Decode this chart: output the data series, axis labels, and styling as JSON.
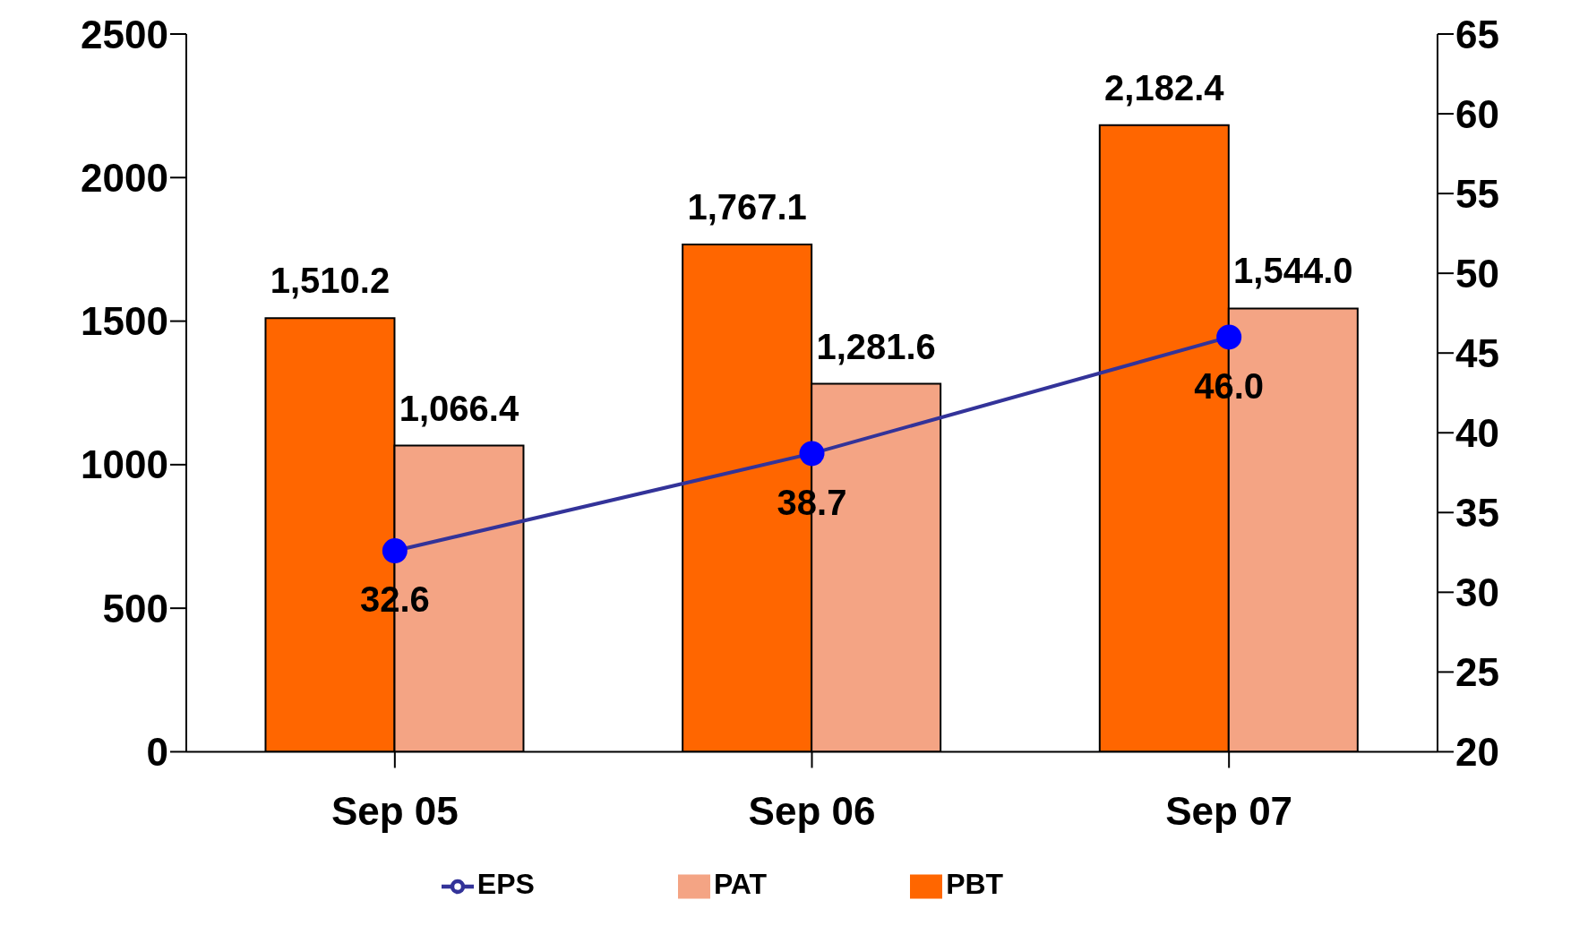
{
  "chart_data": {
    "type": "bar",
    "categories": [
      "Sep 05",
      "Sep 06",
      "Sep 07"
    ],
    "series": [
      {
        "name": "PBT",
        "color": "#ff6600",
        "values": [
          1510.2,
          1767.1,
          2182.4
        ],
        "value_labels": [
          "1,510.2",
          "1,767.1",
          "2,182.4"
        ]
      },
      {
        "name": "PAT",
        "color": "#f4a484",
        "values": [
          1066.4,
          1281.6,
          1544.0
        ],
        "value_labels": [
          "1,066.4",
          "1,281.6",
          "1,544.0"
        ]
      },
      {
        "name": "EPS",
        "type": "line",
        "axis": "y2",
        "color": "#333399",
        "values": [
          32.6,
          38.7,
          46.0
        ],
        "value_labels": [
          "32.6",
          "38.7",
          "46.0"
        ]
      }
    ],
    "ylim": [
      0,
      2500
    ],
    "yticks": [
      0,
      500,
      1000,
      1500,
      2000,
      2500
    ],
    "y2lim": [
      20,
      65
    ],
    "y2ticks": [
      20,
      25,
      30,
      35,
      40,
      45,
      50,
      55,
      60,
      65
    ],
    "grid": false,
    "legend": "bottom",
    "marker": "circle",
    "line_style": "solid"
  }
}
